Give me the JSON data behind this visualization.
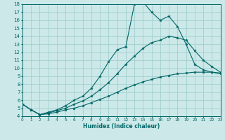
{
  "xlabel": "Humidex (Indice chaleur)",
  "bg_color": "#cce8e8",
  "grid_color": "#99cccc",
  "line_color": "#006666",
  "xlim": [
    0,
    23
  ],
  "ylim": [
    4,
    18
  ],
  "xticks": [
    0,
    1,
    2,
    3,
    4,
    5,
    6,
    7,
    8,
    9,
    10,
    11,
    12,
    13,
    14,
    15,
    16,
    17,
    18,
    19,
    20,
    21,
    22,
    23
  ],
  "yticks": [
    4,
    5,
    6,
    7,
    8,
    9,
    10,
    11,
    12,
    13,
    14,
    15,
    16,
    17,
    18
  ],
  "line1_x": [
    0,
    1,
    2,
    3,
    4,
    5,
    6,
    7,
    8,
    9,
    10,
    11,
    12,
    13,
    14,
    15,
    16,
    17,
    18,
    19,
    20,
    21,
    22,
    23
  ],
  "line1_y": [
    5.5,
    4.8,
    4.2,
    4.5,
    4.8,
    5.3,
    6.0,
    6.5,
    7.5,
    9.0,
    10.8,
    12.3,
    12.7,
    18.0,
    18.3,
    17.0,
    16.0,
    16.5,
    15.2,
    13.0,
    10.5,
    9.8,
    9.5,
    9.3
  ],
  "line2_x": [
    0,
    1,
    2,
    3,
    4,
    5,
    6,
    7,
    8,
    9,
    10,
    11,
    12,
    13,
    14,
    15,
    16,
    17,
    18,
    19,
    20,
    21,
    22,
    23
  ],
  "line2_y": [
    5.5,
    4.8,
    4.2,
    4.4,
    4.7,
    5.0,
    5.5,
    5.9,
    6.5,
    7.3,
    8.2,
    9.3,
    10.5,
    11.5,
    12.5,
    13.2,
    13.5,
    14.0,
    13.8,
    13.5,
    12.2,
    11.0,
    10.2,
    9.5
  ],
  "line3_x": [
    0,
    1,
    2,
    3,
    4,
    5,
    6,
    7,
    8,
    9,
    10,
    11,
    12,
    13,
    14,
    15,
    16,
    17,
    18,
    19,
    20,
    21,
    22,
    23
  ],
  "line3_y": [
    5.5,
    4.8,
    4.2,
    4.3,
    4.5,
    4.8,
    5.0,
    5.3,
    5.7,
    6.1,
    6.5,
    7.0,
    7.5,
    7.9,
    8.3,
    8.6,
    8.9,
    9.1,
    9.3,
    9.4,
    9.5,
    9.5,
    9.5,
    9.4
  ]
}
